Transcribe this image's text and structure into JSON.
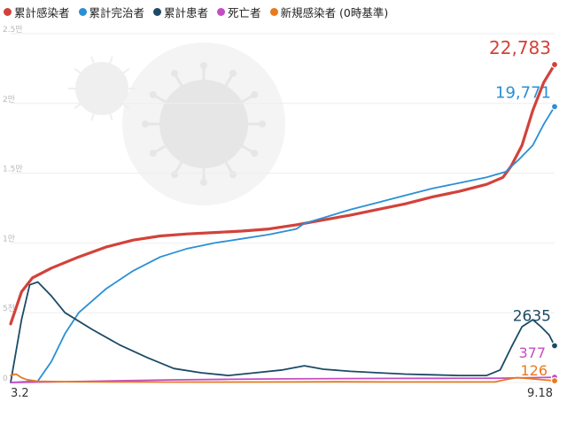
{
  "chart_data": {
    "type": "line",
    "title": "",
    "xlabel": "",
    "ylabel": "",
    "ylim": [
      0,
      25000
    ],
    "y_ticks": [
      {
        "value": 0,
        "label": "0"
      },
      {
        "value": 5000,
        "label": "5천"
      },
      {
        "value": 10000,
        "label": "1만"
      },
      {
        "value": 15000,
        "label": "1.5만"
      },
      {
        "value": 20000,
        "label": "2만"
      },
      {
        "value": 25000,
        "label": "2.5만"
      }
    ],
    "x_ticks": [
      {
        "index": 0,
        "label": "3.2"
      },
      {
        "index": 200,
        "label": "9.18"
      }
    ],
    "x_count": 201,
    "legend_position": "top",
    "grid": true,
    "series": [
      {
        "name": "累計感染者",
        "color": "#d2423a",
        "end_label": "22,783",
        "end_value": 22783,
        "points": [
          [
            0,
            4200
          ],
          [
            4,
            6500
          ],
          [
            8,
            7500
          ],
          [
            15,
            8200
          ],
          [
            25,
            9000
          ],
          [
            35,
            9700
          ],
          [
            45,
            10200
          ],
          [
            55,
            10500
          ],
          [
            65,
            10650
          ],
          [
            75,
            10750
          ],
          [
            85,
            10850
          ],
          [
            95,
            11000
          ],
          [
            105,
            11300
          ],
          [
            115,
            11650
          ],
          [
            125,
            12000
          ],
          [
            135,
            12400
          ],
          [
            145,
            12800
          ],
          [
            155,
            13300
          ],
          [
            165,
            13700
          ],
          [
            175,
            14200
          ],
          [
            181,
            14700
          ],
          [
            184,
            15500
          ],
          [
            188,
            17000
          ],
          [
            192,
            19500
          ],
          [
            196,
            21500
          ],
          [
            200,
            22783
          ]
        ]
      },
      {
        "name": "累計完治者",
        "color": "#2a8fd6",
        "end_label": "19,771",
        "end_value": 19771,
        "points": [
          [
            0,
            0
          ],
          [
            10,
            100
          ],
          [
            15,
            1500
          ],
          [
            20,
            3500
          ],
          [
            25,
            5000
          ],
          [
            35,
            6700
          ],
          [
            45,
            8000
          ],
          [
            55,
            9000
          ],
          [
            65,
            9600
          ],
          [
            75,
            10000
          ],
          [
            85,
            10300
          ],
          [
            95,
            10600
          ],
          [
            105,
            11000
          ],
          [
            108,
            11400
          ],
          [
            115,
            11800
          ],
          [
            125,
            12400
          ],
          [
            135,
            12900
          ],
          [
            145,
            13400
          ],
          [
            155,
            13900
          ],
          [
            165,
            14300
          ],
          [
            175,
            14700
          ],
          [
            182,
            15100
          ],
          [
            187,
            16000
          ],
          [
            192,
            17000
          ],
          [
            196,
            18500
          ],
          [
            200,
            19771
          ]
        ]
      },
      {
        "name": "累計患者",
        "color": "#1c4a66",
        "end_label": "2635",
        "end_value": 2635,
        "points": [
          [
            0,
            0
          ],
          [
            4,
            4500
          ],
          [
            7,
            7000
          ],
          [
            10,
            7200
          ],
          [
            15,
            6200
          ],
          [
            20,
            5000
          ],
          [
            30,
            3800
          ],
          [
            40,
            2700
          ],
          [
            50,
            1800
          ],
          [
            60,
            1000
          ],
          [
            70,
            700
          ],
          [
            80,
            500
          ],
          [
            90,
            700
          ],
          [
            100,
            900
          ],
          [
            108,
            1200
          ],
          [
            115,
            950
          ],
          [
            125,
            800
          ],
          [
            135,
            700
          ],
          [
            145,
            600
          ],
          [
            155,
            550
          ],
          [
            165,
            500
          ],
          [
            175,
            500
          ],
          [
            180,
            900
          ],
          [
            184,
            2500
          ],
          [
            188,
            4000
          ],
          [
            192,
            4500
          ],
          [
            195,
            4000
          ],
          [
            198,
            3400
          ],
          [
            200,
            2635
          ]
        ]
      },
      {
        "name": "死亡者",
        "color": "#c44dc4",
        "end_label": "377",
        "end_value": 377,
        "points": [
          [
            0,
            0
          ],
          [
            20,
            60
          ],
          [
            40,
            130
          ],
          [
            60,
            190
          ],
          [
            80,
            230
          ],
          [
            100,
            260
          ],
          [
            120,
            280
          ],
          [
            140,
            290
          ],
          [
            160,
            300
          ],
          [
            180,
            310
          ],
          [
            190,
            340
          ],
          [
            200,
            377
          ]
        ]
      },
      {
        "name": "新規感染者 (0時基準)",
        "color": "#e8791e",
        "end_label": "126",
        "end_value": 126,
        "points": [
          [
            0,
            500
          ],
          [
            2,
            600
          ],
          [
            4,
            350
          ],
          [
            6,
            200
          ],
          [
            10,
            80
          ],
          [
            20,
            60
          ],
          [
            40,
            40
          ],
          [
            60,
            30
          ],
          [
            80,
            30
          ],
          [
            100,
            40
          ],
          [
            120,
            50
          ],
          [
            140,
            40
          ],
          [
            160,
            35
          ],
          [
            178,
            40
          ],
          [
            182,
            200
          ],
          [
            186,
            350
          ],
          [
            190,
            300
          ],
          [
            194,
            220
          ],
          [
            198,
            160
          ],
          [
            200,
            126
          ]
        ]
      }
    ]
  }
}
